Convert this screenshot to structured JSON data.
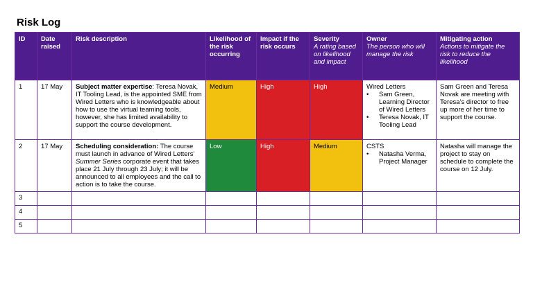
{
  "title": "Risk Log",
  "headers": {
    "id": "ID",
    "date": "Date raised",
    "desc": "Risk description",
    "likelihood": "Likelihood of the risk occurring",
    "impact": "Impact if the risk occurs",
    "severity": "Severity",
    "severity_sub": "A rating based on likelihood and impact",
    "owner": "Owner",
    "owner_sub": "The person who will manage the risk",
    "mitigating": "Mitigating action",
    "mitigating_sub": "Actions to mitigate the risk to reduce the likelihood"
  },
  "rows": [
    {
      "id": "1",
      "date": "17 May",
      "desc_bold": "Subject matter expertise",
      "desc_rest": ": Teresa Novak, IT Tooling Lead, is the appointed SME from Wired Letters who is knowledgeable about how to use the virtual teaming tools, however, she has limited availability to support the course development.",
      "likelihood": "Medium",
      "impact": "High",
      "severity": "High",
      "owner_org": "Wired Letters",
      "owner_people": [
        "Sam Green, Learning Director of Wired Letters",
        "Teresa Novak, IT Tooling Lead"
      ],
      "mitigating": "Sam Green and Teresa Novak are meeting with Teresa’s director to free up more of her time to support the course."
    },
    {
      "id": "2",
      "date": "17 May",
      "desc_bold": "Scheduling consideration:",
      "desc_pre": " The course must launch in advance of Wired Letters’ ",
      "desc_italic": "Summer Series",
      "desc_post": " corporate event that takes place 21 July through 23 July; it will be announced to all employees and the call to action is to take the course.",
      "likelihood": "Low",
      "impact": "High",
      "severity": "Medium",
      "owner_org": "CSTS",
      "owner_people": [
        "Natasha Verma, Project Manager"
      ],
      "mitigating": "Natasha will manage the project to stay on schedule to complete the course on 12 July."
    }
  ],
  "empty_rows": [
    "3",
    "4",
    "5"
  ],
  "colors": {
    "header": "#4f1d8e",
    "high": "#d81f26",
    "medium": "#f2c10f",
    "low": "#1f8a3b"
  }
}
